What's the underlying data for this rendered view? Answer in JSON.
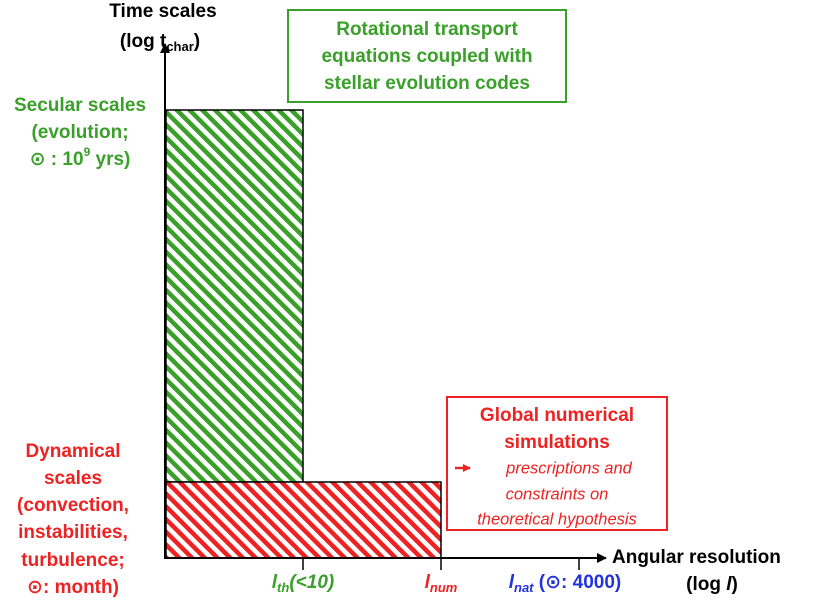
{
  "y_axis": {
    "label": "Time scales",
    "unit": {
      "prefix": "(log t",
      "sub": "char",
      "suffix": ")"
    }
  },
  "x_axis": {
    "label": "Angular resolution",
    "unit": {
      "prefix": "(log ",
      "var": "l",
      "suffix": ")"
    }
  },
  "green_box": {
    "lines": [
      "Rotational transport",
      "equations coupled with",
      "stellar evolution codes"
    ]
  },
  "secular": {
    "lines": [
      "Secular scales",
      "(evolution;"
    ],
    "last": {
      "text": "⊙ : 10",
      "sup": "9",
      "suffix": " yrs)"
    }
  },
  "dynamical": {
    "lines": [
      "Dynamical",
      "scales",
      "(convection,",
      "instabilities,",
      "turbulence;",
      "⊙: month)"
    ]
  },
  "red_box": {
    "title": [
      "Global numerical",
      "simulations"
    ],
    "notes": [
      "prescriptions and",
      "constraints on",
      "theoretical hypothesis"
    ]
  },
  "ticks": [
    {
      "var": "l",
      "sub": "th",
      "suffix": "(<10)"
    },
    {
      "var": "l",
      "sub": "num"
    },
    {
      "var": "l",
      "sub": "nat",
      "suffix": " (⊙: 4000)"
    }
  ]
}
